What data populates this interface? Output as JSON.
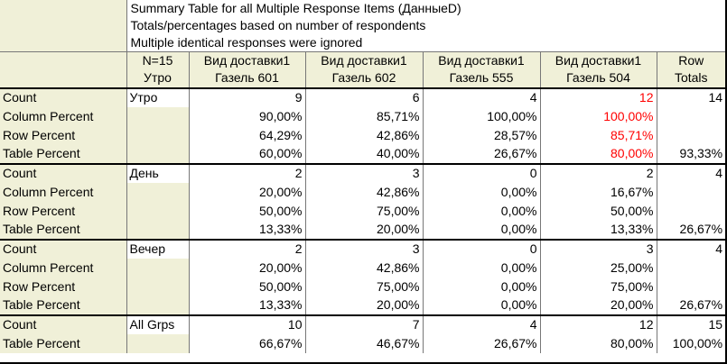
{
  "title": {
    "line1": "Summary Table for all Multiple Response Items (ДанныеD)",
    "line2": "Totals/percentages based on number of respondents",
    "line3": "Multiple identical responses were ignored"
  },
  "columns": {
    "group_header_line1": "N=15",
    "group_header_line2": "Утро",
    "c1_line1": "Вид доставки1",
    "c1_line2": "Газель 601",
    "c2_line1": "Вид доставки1",
    "c2_line2": "Газель 602",
    "c3_line1": "Вид доставки1",
    "c3_line2": "Газель 555",
    "c4_line1": "Вид доставки1",
    "c4_line2": "Газель 504",
    "tot_line1": "Row",
    "tot_line2": "Totals"
  },
  "rows": [
    {
      "label": "Count",
      "group": "Утро",
      "v": [
        "9",
        "6",
        "4",
        "12"
      ],
      "tot": "14"
    },
    {
      "label": "Column Percent",
      "group": "",
      "v": [
        "90,00%",
        "85,71%",
        "100,00%",
        "100,00%"
      ],
      "tot": ""
    },
    {
      "label": "Row Percent",
      "group": "",
      "v": [
        "64,29%",
        "42,86%",
        "28,57%",
        "85,71%"
      ],
      "tot": ""
    },
    {
      "label": "Table Percent",
      "group": "",
      "v": [
        "60,00%",
        "40,00%",
        "26,67%",
        "80,00%"
      ],
      "tot": "93,33%"
    },
    {
      "label": "Count",
      "group": "День",
      "v": [
        "2",
        "3",
        "0",
        "2"
      ],
      "tot": "4"
    },
    {
      "label": "Column Percent",
      "group": "",
      "v": [
        "20,00%",
        "42,86%",
        "0,00%",
        "16,67%"
      ],
      "tot": ""
    },
    {
      "label": "Row Percent",
      "group": "",
      "v": [
        "50,00%",
        "75,00%",
        "0,00%",
        "50,00%"
      ],
      "tot": ""
    },
    {
      "label": "Table Percent",
      "group": "",
      "v": [
        "13,33%",
        "20,00%",
        "0,00%",
        "13,33%"
      ],
      "tot": "26,67%"
    },
    {
      "label": "Count",
      "group": "Вечер",
      "v": [
        "2",
        "3",
        "0",
        "3"
      ],
      "tot": "4"
    },
    {
      "label": "Column Percent",
      "group": "",
      "v": [
        "20,00%",
        "42,86%",
        "0,00%",
        "25,00%"
      ],
      "tot": ""
    },
    {
      "label": "Row Percent",
      "group": "",
      "v": [
        "50,00%",
        "75,00%",
        "0,00%",
        "75,00%"
      ],
      "tot": ""
    },
    {
      "label": "Table Percent",
      "group": "",
      "v": [
        "13,33%",
        "20,00%",
        "0,00%",
        "20,00%"
      ],
      "tot": "26,67%"
    },
    {
      "label": "Count",
      "group": "All Grps",
      "v": [
        "10",
        "7",
        "4",
        "12"
      ],
      "tot": "15"
    },
    {
      "label": "Table Percent",
      "group": "",
      "v": [
        "66,67%",
        "46,67%",
        "26,67%",
        "80,00%"
      ],
      "tot": "100,00%"
    }
  ],
  "colors": {
    "highlight": "#ff0000",
    "label_bg": "#f0f0d8"
  }
}
